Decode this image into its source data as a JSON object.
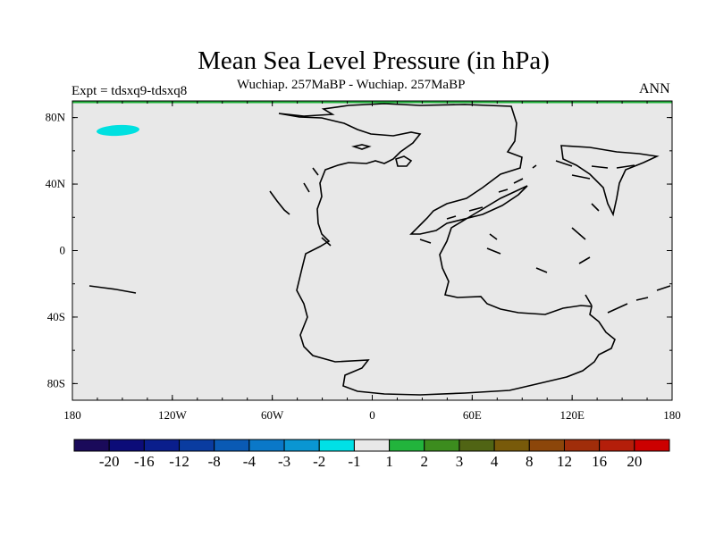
{
  "map": {
    "title": "Mean Sea Level Pressure (in hPa)",
    "subtitle": "Wuchiap. 257MaBP - Wuchiap. 257MaBP",
    "experiment": "Expt = tdsxq9-tdsxq8",
    "season": "ANN",
    "x_ticks": [
      "180",
      "120W",
      "60W",
      "0",
      "60E",
      "120E",
      "180"
    ],
    "y_ticks": [
      "80N",
      "40N",
      "0",
      "40S",
      "80S"
    ],
    "background_color": "#e8e8e8",
    "anomaly_region": {
      "label": "-2 to -1",
      "color": "#00e0e0",
      "lon": -150,
      "lat": 73
    }
  },
  "colorbar": {
    "colors": [
      "#1a0a5a",
      "#0c0c78",
      "#0a1e8c",
      "#0a3ca0",
      "#0a5ab4",
      "#0a78c8",
      "#0a96d2",
      "#00e0e6",
      "#e8e8e8",
      "#22b43c",
      "#3c8c1e",
      "#506414",
      "#785a0a",
      "#8c460a",
      "#a02d0a",
      "#b41e0a",
      "#cc0000"
    ],
    "labels": [
      "-20",
      "-16",
      "-12",
      "-8",
      "-4",
      "-3",
      "-2",
      "-1",
      "1",
      "2",
      "3",
      "4",
      "8",
      "12",
      "16",
      "20"
    ]
  }
}
